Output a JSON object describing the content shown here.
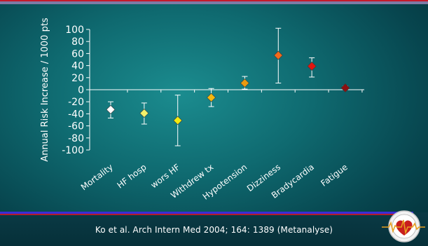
{
  "slide": {
    "citation": "Ko et al. Arch Intern Med 2004; 164: 1389 (Metanalyse)",
    "background_color": "#0f6a70",
    "logo_icon": "heart-ecg-logo-icon"
  },
  "chart_data": {
    "type": "scatter",
    "title": "",
    "xlabel": "",
    "ylabel": "Annual Risk Increase / 1000 pts",
    "ylim": [
      -100,
      100
    ],
    "yticks": [
      100,
      80,
      60,
      40,
      20,
      0,
      -20,
      -40,
      -60,
      -80,
      -100
    ],
    "grid": false,
    "error_bars": true,
    "categories": [
      "Mortality",
      "HF hosp",
      "wors HF",
      "Withdrew tx",
      "Hypotension",
      "Dizziness",
      "Bradycardia",
      "Fatigue"
    ],
    "points": [
      {
        "label": "Mortality",
        "value": -33,
        "low": -47,
        "high": -20,
        "color": "#ffffff"
      },
      {
        "label": "HF hosp",
        "value": -39,
        "low": -57,
        "high": -22,
        "color": "#f3f06a"
      },
      {
        "label": "wors HF",
        "value": -51,
        "low": -93,
        "high": -9,
        "color": "#f1ea12"
      },
      {
        "label": "Withdrew tx",
        "value": -13,
        "low": -28,
        "high": 2,
        "color": "#f2b80f"
      },
      {
        "label": "Hypotension",
        "value": 11,
        "low": 1,
        "high": 22,
        "color": "#ea9a10"
      },
      {
        "label": "Dizziness",
        "value": 57,
        "low": 11,
        "high": 102,
        "color": "#f26a1a"
      },
      {
        "label": "Bradycardia",
        "value": 39,
        "low": 21,
        "high": 53,
        "color": "#e2150f"
      },
      {
        "label": "Fatigue",
        "value": 3,
        "low": 0,
        "high": 6,
        "color": "#8b1010"
      }
    ]
  }
}
